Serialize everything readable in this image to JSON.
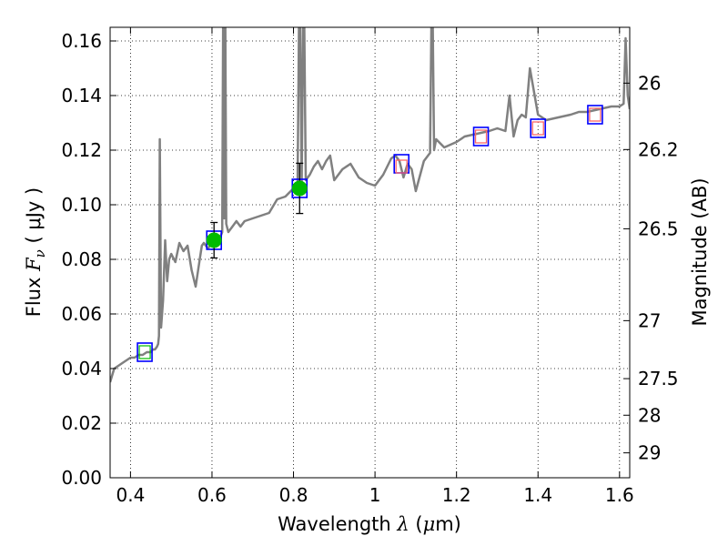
{
  "chart_data": {
    "type": "scatter",
    "xlabel": {
      "prefix": "Wavelength ",
      "symbol": "λ",
      "unit_open": " (",
      "unit_symbol": "μ",
      "unit_rest": "m)"
    },
    "ylabel": {
      "prefix": "Flux ",
      "symbol": "F",
      "subscript": "ν",
      "unit": " ( μJy )"
    },
    "y2label": "Magnitude (AB)",
    "xlim": [
      0.35,
      1.625
    ],
    "ylim": [
      0.0,
      0.165
    ],
    "x_ticks": [
      0.4,
      0.6,
      0.8,
      1.0,
      1.2,
      1.4,
      1.6
    ],
    "x_tick_labels": [
      "0.4",
      "0.6",
      "0.8",
      "1",
      "1.2",
      "1.4",
      "1.6"
    ],
    "y_ticks": [
      0.0,
      0.02,
      0.04,
      0.06,
      0.08,
      0.1,
      0.12,
      0.14,
      0.16
    ],
    "y_tick_labels": [
      "0.00",
      "0.02",
      "0.04",
      "0.06",
      "0.08",
      "0.10",
      "0.12",
      "0.14",
      "0.16"
    ],
    "mag_ticks": [
      26,
      26.2,
      26.5,
      27,
      27.5,
      28,
      29
    ],
    "mag_tick_labels": [
      "26",
      "26.2",
      "26.5",
      "27",
      "27.5",
      "28",
      "29"
    ],
    "grid": true,
    "colors": {
      "spectrum": "#808080",
      "model_box": "#0000ff",
      "observed": "#00bb00",
      "predicted": "#ff6666",
      "errorbar": "#000000"
    },
    "series": [
      {
        "kind": "line",
        "x": [
          0.35,
          0.36,
          0.37,
          0.38,
          0.39,
          0.4,
          0.41,
          0.42,
          0.43,
          0.44,
          0.45,
          0.455,
          0.46,
          0.465,
          0.468,
          0.47,
          0.472,
          0.475,
          0.48,
          0.485,
          0.49,
          0.495,
          0.5,
          0.51,
          0.52,
          0.53,
          0.54,
          0.55,
          0.56,
          0.57,
          0.575,
          0.58,
          0.59,
          0.6,
          0.61,
          0.62,
          0.625,
          0.628,
          0.63,
          0.632,
          0.635,
          0.64,
          0.65,
          0.66,
          0.67,
          0.68,
          0.7,
          0.72,
          0.74,
          0.76,
          0.78,
          0.8,
          0.81,
          0.815,
          0.82,
          0.825,
          0.83,
          0.84,
          0.85,
          0.86,
          0.87,
          0.88,
          0.89,
          0.9,
          0.92,
          0.94,
          0.96,
          0.98,
          1.0,
          1.02,
          1.04,
          1.05,
          1.06,
          1.07,
          1.08,
          1.09,
          1.1,
          1.12,
          1.135,
          1.14,
          1.145,
          1.15,
          1.17,
          1.2,
          1.22,
          1.25,
          1.28,
          1.3,
          1.32,
          1.33,
          1.34,
          1.345,
          1.35,
          1.36,
          1.37,
          1.38,
          1.4,
          1.42,
          1.45,
          1.48,
          1.5,
          1.52,
          1.55,
          1.58,
          1.6,
          1.61,
          1.615,
          1.62,
          1.625
        ],
        "y": [
          0.035,
          0.04,
          0.041,
          0.042,
          0.043,
          0.044,
          0.044,
          0.045,
          0.045,
          0.046,
          0.046,
          0.047,
          0.047,
          0.048,
          0.049,
          0.052,
          0.124,
          0.055,
          0.065,
          0.087,
          0.072,
          0.08,
          0.082,
          0.079,
          0.086,
          0.083,
          0.085,
          0.076,
          0.07,
          0.08,
          0.085,
          0.086,
          0.084,
          0.086,
          0.087,
          0.088,
          0.09,
          0.19,
          0.095,
          0.19,
          0.093,
          0.09,
          0.092,
          0.094,
          0.092,
          0.094,
          0.095,
          0.096,
          0.097,
          0.102,
          0.103,
          0.106,
          0.107,
          0.19,
          0.107,
          0.19,
          0.109,
          0.111,
          0.114,
          0.116,
          0.113,
          0.116,
          0.118,
          0.109,
          0.113,
          0.115,
          0.11,
          0.108,
          0.107,
          0.111,
          0.117,
          0.118,
          0.116,
          0.11,
          0.115,
          0.113,
          0.105,
          0.116,
          0.119,
          0.19,
          0.12,
          0.124,
          0.121,
          0.123,
          0.125,
          0.126,
          0.127,
          0.128,
          0.127,
          0.14,
          0.125,
          0.128,
          0.131,
          0.133,
          0.132,
          0.15,
          0.133,
          0.131,
          0.132,
          0.133,
          0.134,
          0.134,
          0.135,
          0.136,
          0.136,
          0.137,
          0.161,
          0.14,
          0.135
        ]
      },
      {
        "kind": "model_boxes",
        "x": [
          0.435,
          0.605,
          0.815,
          1.065,
          1.26,
          1.4,
          1.54
        ],
        "y": [
          0.046,
          0.087,
          0.106,
          0.115,
          0.125,
          0.128,
          0.133
        ]
      },
      {
        "kind": "observed",
        "x": [
          0.605,
          0.815
        ],
        "y": [
          0.087,
          0.106
        ],
        "yerr": [
          0.0065,
          0.0092
        ]
      },
      {
        "kind": "predicted",
        "x": [
          1.065,
          1.26,
          1.4,
          1.54
        ],
        "y": [
          0.114,
          0.125,
          0.128,
          0.133
        ]
      },
      {
        "kind": "predicted_green",
        "x": [
          0.435
        ],
        "y": [
          0.046
        ]
      }
    ]
  }
}
